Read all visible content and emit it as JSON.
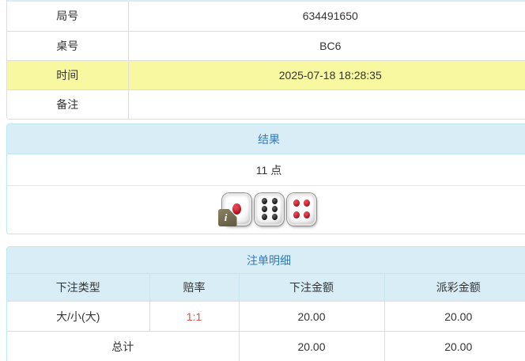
{
  "info_table": {
    "rows": [
      {
        "label": "局号",
        "value": "634491650"
      },
      {
        "label": "桌号",
        "value": "BC6"
      },
      {
        "label": "时间",
        "value": "2025-07-18 18:28:35"
      },
      {
        "label": "备注",
        "value": ""
      }
    ],
    "highlight_row_index": 2,
    "highlight_color": "#f8f8a1"
  },
  "result_panel": {
    "title": "结果",
    "points": "11 点",
    "dice_values": [
      1,
      6,
      4
    ],
    "dice_pip_colors": [
      "red",
      "black",
      "red"
    ],
    "info_icon": "i"
  },
  "bets_panel": {
    "title": "注单明细",
    "columns": [
      "下注类型",
      "赔率",
      "下注金额",
      "派彩金额"
    ],
    "rows": [
      {
        "type": "大/小(大)",
        "odds": "1:1",
        "bet_amount": "20.00",
        "payout_amount": "20.00"
      }
    ],
    "total": {
      "label": "总计",
      "bet_amount": "20.00",
      "payout_amount": "20.00"
    }
  },
  "colors": {
    "panel_header_bg": "#d9edf7",
    "panel_border": "#bce8f1",
    "panel_header_text": "#337ab7",
    "highlight_yellow": "#f8f8a1",
    "odds_red": "#d9534f",
    "cell_border": "#dddddd"
  }
}
